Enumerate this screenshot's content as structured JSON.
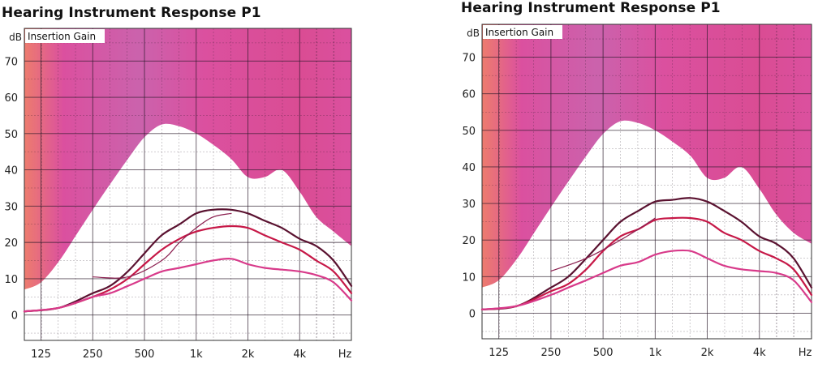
{
  "chart_data": [
    {
      "type": "line",
      "title": "Hearing Instrument Response P1",
      "ylabel": "dB",
      "plot_label": "Insertion Gain",
      "xlabel": "Hz",
      "x_scale": "log",
      "xlim": [
        100,
        8000
      ],
      "ylim": [
        -7,
        79
      ],
      "yticks": [
        0,
        10,
        20,
        30,
        40,
        50,
        60,
        70
      ],
      "xticks": [
        {
          "value": 125,
          "label": "125"
        },
        {
          "value": 250,
          "label": "250"
        },
        {
          "value": 500,
          "label": "500"
        },
        {
          "value": 1000,
          "label": "1k"
        },
        {
          "value": 2000,
          "label": "2k"
        },
        {
          "value": 4000,
          "label": "4k"
        }
      ],
      "colors": {
        "shade": "#d9479a",
        "shade_warm": "#ec7566",
        "grid": "#2a1a2a"
      },
      "shaded_area_boundary": {
        "x": [
          100,
          125,
          160,
          200,
          250,
          315,
          400,
          500,
          630,
          800,
          1000,
          1250,
          1600,
          2000,
          2500,
          3150,
          4000,
          5000,
          6300,
          8000
        ],
        "y": [
          7,
          9,
          15,
          22,
          29,
          36,
          43,
          49,
          52.5,
          52,
          50,
          47,
          43,
          38,
          38,
          40,
          34,
          27,
          23,
          19
        ]
      },
      "series": [
        {
          "color": "#5a1230",
          "x": [
            100,
            160,
            250,
            315,
            400,
            500,
            630,
            800,
            1000,
            1250,
            1600,
            2000,
            2500,
            3150,
            4000,
            5000,
            6300,
            8000
          ],
          "y": [
            1,
            2,
            6,
            8,
            12,
            17,
            22,
            25,
            28,
            29,
            29,
            28,
            26,
            24,
            21,
            19,
            15,
            8
          ]
        },
        {
          "color": "#c61847",
          "x": [
            100,
            160,
            250,
            315,
            400,
            500,
            630,
            800,
            1000,
            1250,
            1600,
            2000,
            2500,
            3150,
            4000,
            5000,
            6300,
            8000
          ],
          "y": [
            1,
            2,
            5,
            7,
            10,
            14,
            18,
            21,
            23,
            24,
            24.5,
            24,
            22,
            20,
            18,
            15,
            12,
            6
          ]
        },
        {
          "color": "#d83a8a",
          "x": [
            100,
            160,
            250,
            315,
            400,
            500,
            630,
            800,
            1000,
            1250,
            1600,
            2000,
            2500,
            3150,
            4000,
            5000,
            6300,
            8000
          ],
          "y": [
            1,
            2,
            5,
            6,
            8,
            10,
            12,
            13,
            14,
            15,
            15.5,
            14,
            13,
            12.5,
            12,
            11,
            9,
            4
          ]
        },
        {
          "color": "#8c2050",
          "x": [
            250,
            400,
            630,
            800,
            1000,
            1250,
            1600
          ],
          "y": [
            10.5,
            10.5,
            15,
            20,
            24,
            27,
            28
          ]
        }
      ]
    },
    {
      "type": "line",
      "title": "Hearing Instrument Response P1",
      "ylabel": "dB",
      "plot_label": "Insertion Gain",
      "xlabel": "Hz",
      "x_scale": "log",
      "xlim": [
        100,
        8000
      ],
      "ylim": [
        -7,
        79
      ],
      "yticks": [
        0,
        10,
        20,
        30,
        40,
        50,
        60,
        70
      ],
      "xticks": [
        {
          "value": 125,
          "label": "125"
        },
        {
          "value": 250,
          "label": "250"
        },
        {
          "value": 500,
          "label": "500"
        },
        {
          "value": 1000,
          "label": "1k"
        },
        {
          "value": 2000,
          "label": "2k"
        },
        {
          "value": 4000,
          "label": "4k"
        }
      ],
      "colors": {
        "shade": "#d9479a",
        "shade_warm": "#ec7566",
        "grid": "#2a1a2a"
      },
      "shaded_area_boundary": {
        "x": [
          100,
          125,
          160,
          200,
          250,
          315,
          400,
          500,
          630,
          800,
          1000,
          1250,
          1600,
          2000,
          2500,
          3150,
          4000,
          5000,
          6300,
          8000
        ],
        "y": [
          7,
          9,
          15,
          22,
          29,
          36,
          43,
          49,
          52.5,
          52,
          50,
          47,
          43,
          37,
          37,
          40,
          34,
          27,
          22,
          19
        ]
      },
      "series": [
        {
          "color": "#5a1230",
          "x": [
            100,
            160,
            250,
            315,
            400,
            500,
            630,
            800,
            1000,
            1250,
            1600,
            2000,
            2500,
            3150,
            4000,
            5000,
            6300,
            8000
          ],
          "y": [
            1,
            2,
            7,
            10,
            15,
            20,
            25,
            28,
            30.5,
            31,
            31.5,
            30.5,
            28,
            25,
            21,
            19,
            15,
            7
          ]
        },
        {
          "color": "#c61847",
          "x": [
            100,
            160,
            250,
            315,
            400,
            500,
            630,
            800,
            1000,
            1250,
            1600,
            2000,
            2500,
            3150,
            4000,
            5000,
            6300,
            8000
          ],
          "y": [
            1,
            2,
            6,
            8,
            12,
            17,
            21,
            23,
            25.5,
            26,
            26,
            25,
            22,
            20,
            17,
            15,
            12,
            5
          ]
        },
        {
          "color": "#d83a8a",
          "x": [
            100,
            160,
            250,
            315,
            400,
            500,
            630,
            800,
            1000,
            1250,
            1600,
            2000,
            2500,
            3150,
            4000,
            5000,
            6300,
            8000
          ],
          "y": [
            1,
            2,
            5,
            7,
            9,
            11,
            13,
            14,
            16,
            17,
            17,
            15,
            13,
            12,
            11.5,
            11,
            9,
            3
          ]
        },
        {
          "color": "#8c2050",
          "x": [
            250,
            400,
            630,
            800,
            1000
          ],
          "y": [
            11.5,
            15,
            20,
            23,
            26
          ]
        }
      ]
    }
  ]
}
